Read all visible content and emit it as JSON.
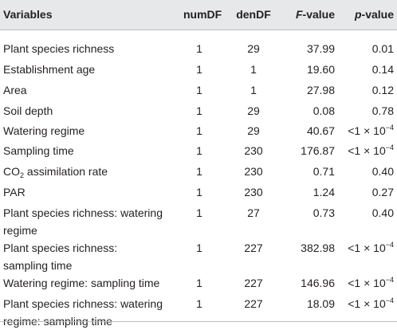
{
  "headers": {
    "variables": "Variables",
    "numdf": "numDF",
    "dendf": "denDF",
    "fvalue_italic": "F",
    "fvalue_rest": "-value",
    "pvalue_italic": "p",
    "pvalue_rest": "-value"
  },
  "rows": [
    {
      "var_line1": "Plant species richness",
      "var_line2": "",
      "numdf": "1",
      "dendf": "29",
      "f": "37.99",
      "p": "0.01",
      "p_exp": ""
    },
    {
      "var_line1": "Establishment age",
      "var_line2": "",
      "numdf": "1",
      "dendf": "1",
      "f": "19.60",
      "p": "0.14",
      "p_exp": ""
    },
    {
      "var_line1": "Area",
      "var_line2": "",
      "numdf": "1",
      "dendf": "1",
      "f": "27.98",
      "p": "0.12",
      "p_exp": ""
    },
    {
      "var_line1": "Soil depth",
      "var_line2": "",
      "numdf": "1",
      "dendf": "29",
      "f": "0.08",
      "p": "0.78",
      "p_exp": ""
    },
    {
      "var_line1": "Watering regime",
      "var_line2": "",
      "numdf": "1",
      "dendf": "29",
      "f": "40.67",
      "p": "<1 × 10",
      "p_exp": "−4"
    },
    {
      "var_line1": "Sampling time",
      "var_line2": "",
      "numdf": "1",
      "dendf": "230",
      "f": "176.87",
      "p": "<1 × 10",
      "p_exp": "−4"
    },
    {
      "var_line1": "CO",
      "var_sub": "2",
      "var_after": " assimilation rate",
      "var_line2": "",
      "numdf": "1",
      "dendf": "230",
      "f": "0.71",
      "p": "0.40",
      "p_exp": ""
    },
    {
      "var_line1": "PAR",
      "var_line2": "",
      "numdf": "1",
      "dendf": "230",
      "f": "1.24",
      "p": "0.27",
      "p_exp": ""
    },
    {
      "var_line1": "Plant species richness: watering",
      "var_line2": "regime",
      "numdf": "1",
      "dendf": "27",
      "f": "0.73",
      "p": "0.40",
      "p_exp": ""
    },
    {
      "var_line1": "Plant species richness:",
      "var_line2": "sampling time",
      "numdf": "1",
      "dendf": "227",
      "f": "382.98",
      "p": "<1 × 10",
      "p_exp": "−4"
    },
    {
      "var_line1": "Watering regime: sampling time",
      "var_line2": "",
      "numdf": "1",
      "dendf": "227",
      "f": "146.96",
      "p": "<1 × 10",
      "p_exp": "−4"
    },
    {
      "var_line1": "Plant species richness: watering",
      "var_line2": "regime: sampling time",
      "numdf": "1",
      "dendf": "227",
      "f": "18.09",
      "p": "<1 × 10",
      "p_exp": "−4"
    }
  ]
}
